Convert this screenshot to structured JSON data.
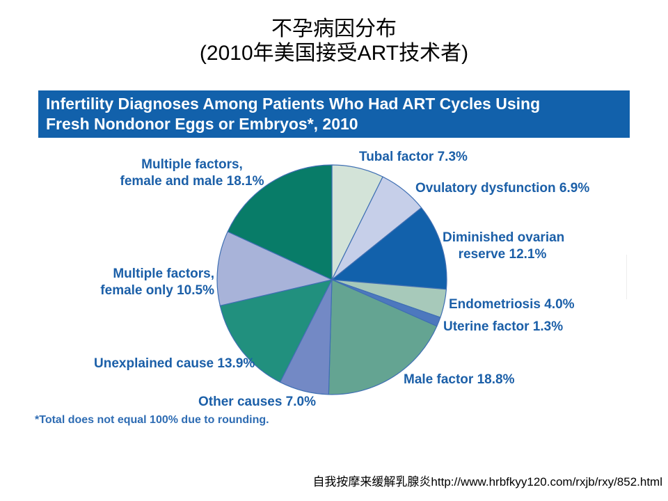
{
  "slide": {
    "title_line1": "不孕病因分布",
    "title_line2": "(2010年美国接受ART技术者)",
    "footer_text": "自我按摩来缓解乳腺炎http://www.hrbfkyy120.com/rxjb/rxy/852.html"
  },
  "banner": {
    "line1": "Infertility Diagnoses Among Patients Who Had ART Cycles Using",
    "line2": "Fresh Nondonor Eggs or Embryos*, 2010",
    "bg_color": "#1261ab",
    "text_color": "#ffffff"
  },
  "footnote": "*Total does not equal 100% due to rounding.",
  "chart_data": {
    "type": "pie",
    "title": "Infertility Diagnoses Among Patients Who Had ART Cycles Using Fresh Nondonor Eggs or Embryos*, 2010",
    "start_angle": "12 o'clock",
    "direction": "clockwise",
    "label_color": "#1b5fa8",
    "stroke_color": "#3f6fb3",
    "slices": [
      {
        "name": "Tubal factor",
        "value": 7.3,
        "color": "#d3e3d8",
        "display": [
          "Tubal factor 7.3%"
        ]
      },
      {
        "name": "Ovulatory dysfunction",
        "value": 6.9,
        "color": "#c6cfe9",
        "display": [
          "Ovulatory dysfunction 6.9%"
        ]
      },
      {
        "name": "Diminished ovarian reserve",
        "value": 12.1,
        "color": "#1261ab",
        "display": [
          "Diminished ovarian",
          "reserve 12.1%"
        ]
      },
      {
        "name": "Endometriosis",
        "value": 4.0,
        "color": "#a7c9ba",
        "display": [
          "Endometriosis 4.0%"
        ]
      },
      {
        "name": "Uterine factor",
        "value": 1.3,
        "color": "#4d78be",
        "display": [
          "Uterine factor 1.3%"
        ]
      },
      {
        "name": "Male factor",
        "value": 18.8,
        "color": "#64a492",
        "display": [
          "Male factor 18.8%"
        ]
      },
      {
        "name": "Other causes",
        "value": 7.0,
        "color": "#7389c5",
        "display": [
          "Other causes 7.0%"
        ]
      },
      {
        "name": "Unexplained cause",
        "value": 13.9,
        "color": "#21907e",
        "display": [
          "Unexplained cause 13.9%"
        ]
      },
      {
        "name": "Multiple factors, female only",
        "value": 10.5,
        "color": "#a8b3d9",
        "display": [
          "Multiple factors,",
          "female only 10.5%"
        ]
      },
      {
        "name": "Multiple factors, female and male",
        "value": 18.1,
        "color": "#087c68",
        "display": [
          "Multiple factors,",
          "female and male 18.1%"
        ]
      }
    ]
  }
}
